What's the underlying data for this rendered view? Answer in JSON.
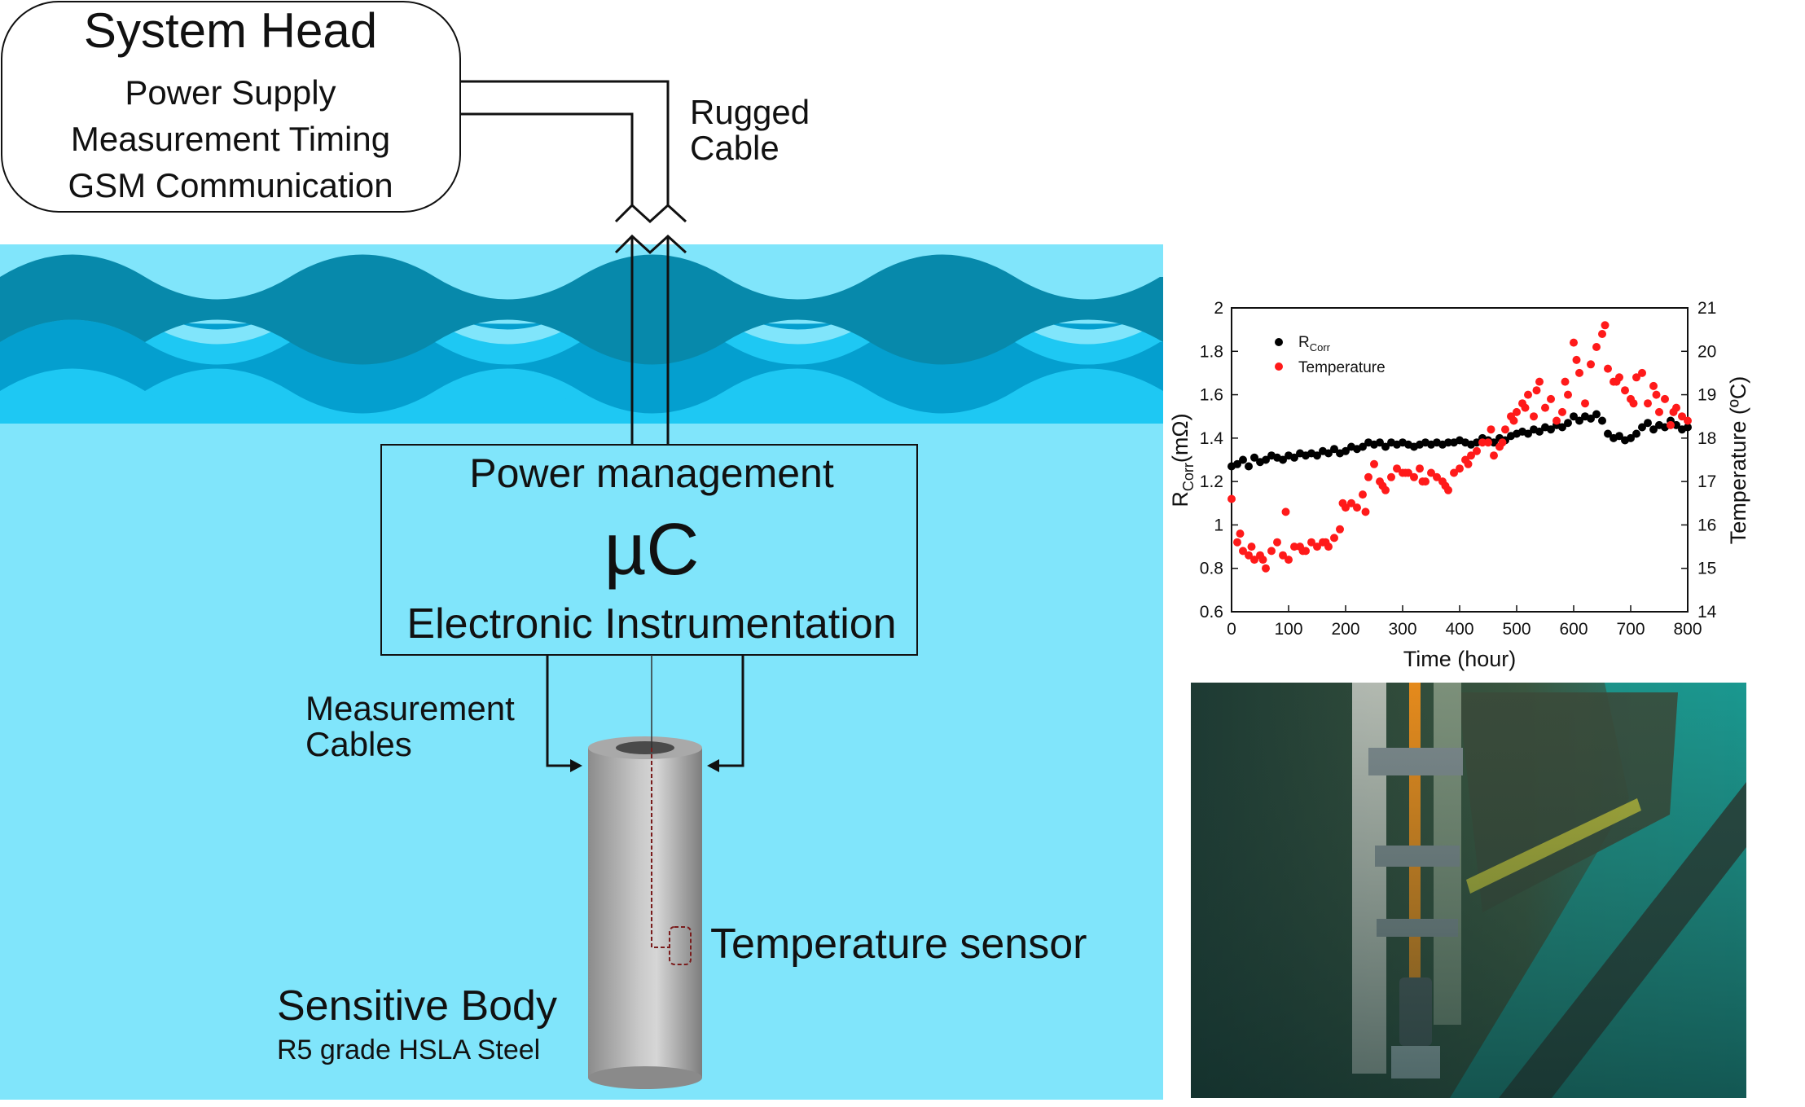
{
  "system_head": {
    "title": "System Head",
    "lines": [
      "Power Supply",
      "Measurement Timing",
      "GSM Communication"
    ]
  },
  "cable_label": [
    "Rugged",
    "Cable"
  ],
  "module": {
    "line1": "Power management",
    "line2": "µC",
    "line3": "Electronic Instrumentation"
  },
  "measurement_label": [
    "Measurement",
    "Cables"
  ],
  "temperature_sensor_label": "Temperature sensor",
  "sensitive_body": {
    "title": "Sensitive Body",
    "subtitle": "R5 grade HSLA Steel"
  },
  "colors": {
    "wave_dark": "#0789ab",
    "wave_mid": "#049fcf",
    "wave_light": "#1ec8f3",
    "water": "#80e5fb",
    "rcorr_series": "#000000",
    "temperature_series": "#ff1a1a"
  },
  "photo": {
    "description_icon": "underwater-photo-icon"
  },
  "chart_data": {
    "type": "scatter",
    "xlabel": "Time (hour)",
    "ylabel_left_main": "R",
    "ylabel_left_sub": "Corr",
    "ylabel_left_unit": "(mΩ)",
    "ylabel_right": "Temperature (ºC)",
    "xlim": [
      0,
      800
    ],
    "ylim_left": [
      0.6,
      2
    ],
    "ylim_right": [
      14,
      21
    ],
    "x_ticks": [
      "0",
      "100",
      "200",
      "300",
      "400",
      "500",
      "600",
      "700",
      "800"
    ],
    "y_left_ticks": [
      "0.6",
      "0.8",
      "1",
      "1.2",
      "1.4",
      "1.6",
      "1.8",
      "2"
    ],
    "y_right_ticks": [
      "14",
      "15",
      "16",
      "17",
      "18",
      "19",
      "20",
      "21"
    ],
    "legend": [
      {
        "main": "R",
        "sub": "Corr",
        "color": "#000000"
      },
      {
        "main": "Temperature",
        "sub": "",
        "color": "#ff1a1a"
      }
    ],
    "legend_placement": "top-left",
    "series": [
      {
        "axis": "left",
        "color": "#000000",
        "x": [
          0,
          10,
          20,
          30,
          40,
          50,
          60,
          70,
          80,
          90,
          100,
          110,
          120,
          130,
          140,
          150,
          160,
          170,
          180,
          190,
          200,
          210,
          220,
          230,
          240,
          250,
          260,
          270,
          280,
          290,
          300,
          310,
          320,
          330,
          340,
          350,
          360,
          370,
          380,
          390,
          400,
          410,
          420,
          430,
          440,
          450,
          460,
          470,
          480,
          490,
          500,
          510,
          520,
          530,
          540,
          550,
          560,
          570,
          580,
          590,
          600,
          610,
          620,
          630,
          640,
          650,
          660,
          670,
          680,
          690,
          700,
          710,
          720,
          730,
          740,
          750,
          760,
          770,
          780,
          790,
          800
        ],
        "y": [
          1.27,
          1.28,
          1.3,
          1.27,
          1.31,
          1.29,
          1.3,
          1.32,
          1.31,
          1.3,
          1.32,
          1.31,
          1.33,
          1.32,
          1.33,
          1.32,
          1.34,
          1.33,
          1.35,
          1.33,
          1.34,
          1.36,
          1.35,
          1.36,
          1.38,
          1.37,
          1.38,
          1.36,
          1.38,
          1.37,
          1.38,
          1.37,
          1.36,
          1.37,
          1.38,
          1.37,
          1.38,
          1.37,
          1.38,
          1.38,
          1.39,
          1.38,
          1.37,
          1.38,
          1.4,
          1.39,
          1.38,
          1.4,
          1.39,
          1.41,
          1.42,
          1.43,
          1.42,
          1.44,
          1.43,
          1.45,
          1.44,
          1.46,
          1.45,
          1.47,
          1.5,
          1.48,
          1.5,
          1.49,
          1.51,
          1.48,
          1.42,
          1.4,
          1.41,
          1.39,
          1.4,
          1.42,
          1.45,
          1.47,
          1.44,
          1.46,
          1.45,
          1.48,
          1.46,
          1.44,
          1.45
        ]
      },
      {
        "axis": "right",
        "color": "#ff1a1a",
        "x": [
          0,
          10,
          20,
          30,
          40,
          50,
          60,
          70,
          80,
          90,
          100,
          110,
          120,
          130,
          140,
          150,
          160,
          170,
          180,
          190,
          200,
          210,
          220,
          230,
          240,
          250,
          260,
          270,
          280,
          290,
          300,
          310,
          320,
          330,
          340,
          350,
          360,
          370,
          380,
          390,
          400,
          410,
          420,
          430,
          440,
          450,
          460,
          470,
          480,
          490,
          500,
          510,
          520,
          530,
          540,
          550,
          560,
          570,
          580,
          590,
          600,
          610,
          620,
          630,
          640,
          650,
          660,
          670,
          680,
          690,
          700,
          710,
          720,
          730,
          740,
          750,
          760,
          770,
          780,
          790,
          800,
          15,
          35,
          55,
          95,
          125,
          165,
          195,
          235,
          265,
          305,
          335,
          375,
          415,
          455,
          475,
          495,
          515,
          535,
          585,
          605,
          655,
          675,
          705,
          745,
          775
        ],
        "y": [
          16.6,
          15.6,
          15.4,
          15.3,
          15.2,
          15.3,
          15.0,
          15.4,
          15.6,
          15.3,
          15.2,
          15.5,
          15.5,
          15.4,
          15.6,
          15.5,
          15.6,
          15.5,
          15.7,
          15.9,
          16.4,
          16.5,
          16.4,
          16.7,
          17.1,
          17.4,
          17.0,
          16.8,
          17.1,
          17.3,
          17.2,
          17.2,
          17.1,
          17.3,
          17.0,
          17.2,
          17.1,
          17.0,
          16.8,
          17.2,
          17.3,
          17.5,
          17.6,
          17.7,
          17.9,
          17.9,
          17.6,
          17.8,
          18.2,
          18.5,
          18.6,
          18.8,
          19.0,
          18.5,
          19.3,
          18.7,
          18.9,
          18.4,
          18.6,
          19.0,
          20.2,
          19.5,
          18.8,
          19.7,
          20.1,
          20.4,
          19.6,
          19.3,
          19.4,
          19.1,
          18.9,
          19.4,
          19.5,
          18.8,
          19.2,
          18.6,
          18.9,
          18.3,
          18.7,
          18.5,
          18.4,
          15.8,
          15.5,
          15.2,
          16.3,
          15.4,
          15.6,
          16.5,
          16.3,
          16.9,
          17.2,
          17.0,
          16.9,
          17.4,
          18.2,
          17.9,
          18.4,
          18.7,
          19.1,
          19.3,
          19.8,
          20.6,
          19.3,
          18.8,
          19.0,
          18.6
        ]
      }
    ]
  }
}
